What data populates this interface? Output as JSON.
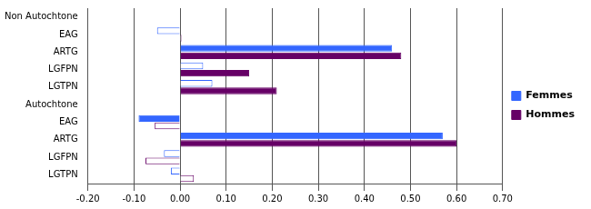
{
  "chart_data": {
    "type": "bar",
    "orientation": "horizontal",
    "categories": [
      "Non Autochtone",
      "EAG",
      "ARTG",
      "LGFPN",
      "LGTPN",
      "Autochtone",
      "EAG",
      "ARTG",
      "LGFPN",
      "LGTPN"
    ],
    "series": [
      {
        "name": "Femmes",
        "color": "#3366ff",
        "colors": [
          null,
          "#ffffff",
          "#3366ff",
          "#ffffff",
          "#ffffff",
          null,
          "#3366ff",
          "#3366ff",
          "#ffffff",
          "#ffffff"
        ],
        "values": [
          null,
          -0.05,
          0.46,
          0.05,
          0.07,
          null,
          -0.09,
          0.57,
          -0.035,
          -0.02
        ]
      },
      {
        "name": "Hommes",
        "color": "#660066",
        "colors": [
          null,
          "#ffffff",
          "#660066",
          "#660066",
          "#660066",
          null,
          "#ffffff",
          "#660066",
          "#ffffff",
          "#ffffff"
        ],
        "values": [
          null,
          0.003,
          0.48,
          0.15,
          0.21,
          null,
          -0.055,
          0.6,
          -0.075,
          0.03
        ]
      }
    ],
    "xlim": [
      -0.2,
      0.7
    ],
    "xticks": [
      {
        "value": -0.2,
        "label": "-0.20"
      },
      {
        "value": -0.1,
        "label": "-0.10"
      },
      {
        "value": 0,
        "label": "0.00"
      },
      {
        "value": 0.1,
        "label": "0.10"
      },
      {
        "value": 0.2,
        "label": "0.20"
      },
      {
        "value": 0.3,
        "label": "0.30"
      },
      {
        "value": 0.4,
        "label": "0.40"
      },
      {
        "value": 0.5,
        "label": "0.50"
      },
      {
        "value": 0.6,
        "label": "0.60"
      },
      {
        "value": 0.7,
        "label": "0.70"
      }
    ],
    "grid": true,
    "legend": "right"
  }
}
